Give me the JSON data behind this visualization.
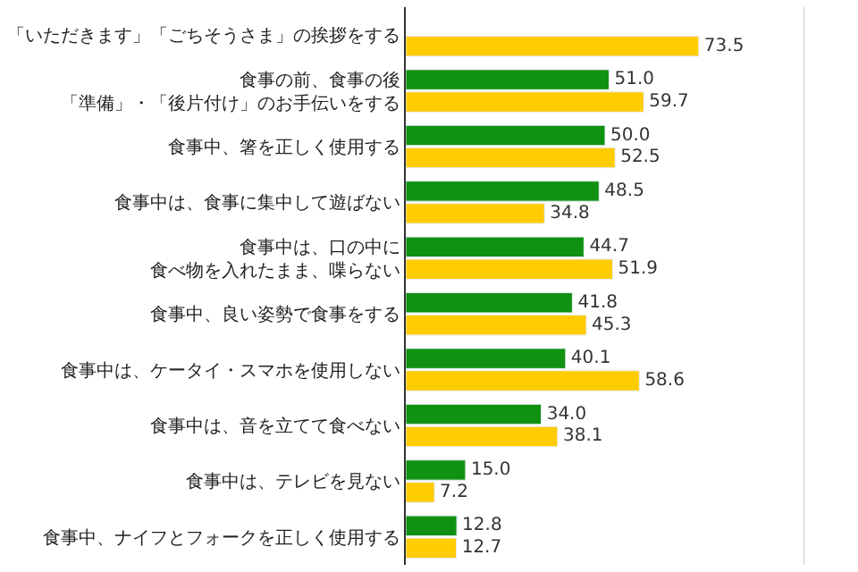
{
  "chart_data": {
    "type": "bar",
    "orientation": "horizontal",
    "categories": [
      "「いただきます」「ごちそうさま」の挨拶をする",
      "食事の前、食事の後「準備」・「後片付け」のお手伝いをする",
      "食事中、箸を正しく使用する",
      "食事中は、食事に集中して遊ばない",
      "食事中は、口の中に食べ物を入れたまま、喋らない",
      "食事中、良い姿勢で食事をする",
      "食事中は、ケータイ・スマホを使用しない",
      "食事中は、音を立てて食べない",
      "食事中は、テレビを見ない",
      "食事中、ナイフとフォークを正しく使用する"
    ],
    "series": [
      {
        "color": "#119111",
        "values": [
          null,
          51.0,
          50.0,
          48.5,
          44.7,
          41.8,
          40.1,
          34.0,
          15.0,
          12.8
        ],
        "value_labels": [
          null,
          "51.0",
          "50.0",
          "48.5",
          "44.7",
          "41.8",
          "40.1",
          "34.0",
          "15.0",
          "12.8"
        ]
      },
      {
        "color": "#ffcc00",
        "values": [
          73.5,
          59.7,
          52.5,
          34.8,
          51.9,
          45.3,
          58.6,
          38.1,
          7.2,
          12.7
        ],
        "value_labels": [
          "73.5",
          "59.7",
          "52.5",
          "34.8",
          "51.9",
          "45.3",
          "58.6",
          "38.1",
          "7.2",
          "12.7"
        ]
      }
    ],
    "xlim": [
      0,
      100
    ],
    "tick_labels": "y",
    "legend": false
  }
}
